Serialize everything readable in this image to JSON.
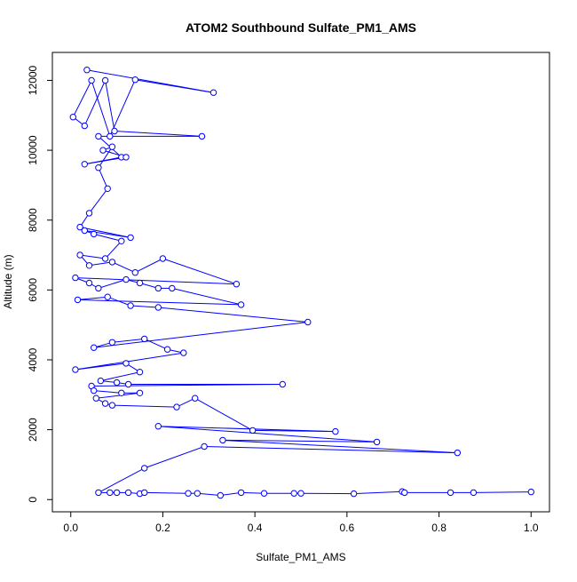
{
  "chart_data": {
    "type": "line",
    "title": "ATOM2 Southbound Sulfate_PM1_AMS",
    "xlabel": "Sulfate_PM1_AMS",
    "ylabel": "Altitude (m)",
    "xlim": [
      -0.04,
      1.04
    ],
    "ylim": [
      -350,
      12800
    ],
    "xticks": [
      0.0,
      0.2,
      0.4,
      0.6,
      0.8,
      1.0
    ],
    "xtick_labels": [
      "0.0",
      "0.2",
      "0.4",
      "0.6",
      "0.8",
      "1.0"
    ],
    "yticks": [
      0,
      2000,
      4000,
      6000,
      8000,
      10000,
      12000
    ],
    "ytick_labels": [
      "0",
      "2000",
      "4000",
      "6000",
      "8000",
      "10000",
      "12000"
    ],
    "grid": false,
    "legend": "none",
    "marker": "open-circle",
    "color": "#0000ff",
    "series": [
      {
        "values": [
          [
            0.035,
            12300
          ],
          [
            0.31,
            11650
          ],
          [
            0.14,
            12020
          ],
          [
            0.085,
            10400
          ],
          [
            0.045,
            12000
          ],
          [
            0.005,
            10950
          ],
          [
            0.03,
            10700
          ],
          [
            0.075,
            12000
          ],
          [
            0.095,
            10550
          ],
          [
            0.285,
            10400
          ],
          [
            0.06,
            10400
          ],
          [
            0.11,
            9800
          ],
          [
            0.03,
            9600
          ],
          [
            0.12,
            9800
          ],
          [
            0.07,
            10000
          ],
          [
            0.09,
            10100
          ],
          [
            0.06,
            9500
          ],
          [
            0.08,
            8900
          ],
          [
            0.04,
            8200
          ],
          [
            0.02,
            7800
          ],
          [
            0.13,
            7500
          ],
          [
            0.03,
            7700
          ],
          [
            0.05,
            7600
          ],
          [
            0.11,
            7400
          ],
          [
            0.075,
            6900
          ],
          [
            0.02,
            7000
          ],
          [
            0.04,
            6700
          ],
          [
            0.09,
            6800
          ],
          [
            0.14,
            6500
          ],
          [
            0.2,
            6900
          ],
          [
            0.36,
            6170
          ],
          [
            0.01,
            6350
          ],
          [
            0.04,
            6200
          ],
          [
            0.06,
            6050
          ],
          [
            0.12,
            6300
          ],
          [
            0.15,
            6200
          ],
          [
            0.19,
            6050
          ],
          [
            0.22,
            6050
          ],
          [
            0.37,
            5580
          ],
          [
            0.015,
            5720
          ],
          [
            0.08,
            5800
          ],
          [
            0.13,
            5550
          ],
          [
            0.19,
            5500
          ],
          [
            0.515,
            5080
          ],
          [
            0.05,
            4350
          ],
          [
            0.09,
            4500
          ],
          [
            0.16,
            4600
          ],
          [
            0.21,
            4300
          ],
          [
            0.245,
            4200
          ],
          [
            0.01,
            3720
          ],
          [
            0.12,
            3900
          ],
          [
            0.15,
            3650
          ],
          [
            0.065,
            3400
          ],
          [
            0.1,
            3350
          ],
          [
            0.125,
            3300
          ],
          [
            0.46,
            3300
          ],
          [
            0.045,
            3250
          ],
          [
            0.05,
            3120
          ],
          [
            0.11,
            3050
          ],
          [
            0.15,
            3050
          ],
          [
            0.055,
            2900
          ],
          [
            0.075,
            2750
          ],
          [
            0.09,
            2700
          ],
          [
            0.23,
            2650
          ],
          [
            0.27,
            2900
          ],
          [
            0.395,
            1980
          ],
          [
            0.575,
            1950
          ],
          [
            0.19,
            2100
          ],
          [
            0.665,
            1650
          ],
          [
            0.33,
            1700
          ],
          [
            0.84,
            1340
          ],
          [
            0.29,
            1520
          ],
          [
            0.16,
            900
          ],
          [
            0.06,
            200
          ],
          [
            0.085,
            200
          ],
          [
            0.1,
            200
          ],
          [
            0.125,
            200
          ],
          [
            0.15,
            170
          ],
          [
            0.16,
            200
          ],
          [
            0.255,
            180
          ],
          [
            0.275,
            180
          ],
          [
            0.325,
            120
          ],
          [
            0.37,
            200
          ],
          [
            0.42,
            180
          ],
          [
            0.485,
            180
          ],
          [
            0.5,
            180
          ],
          [
            0.615,
            170
          ],
          [
            0.72,
            230
          ],
          [
            0.725,
            200
          ],
          [
            0.825,
            200
          ],
          [
            0.875,
            200
          ],
          [
            1.0,
            220
          ]
        ]
      }
    ]
  }
}
